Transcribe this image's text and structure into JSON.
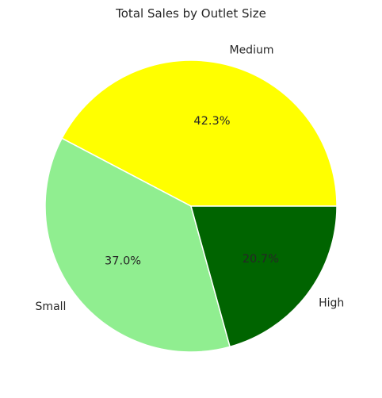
{
  "chart_data": {
    "type": "pie",
    "title": "Total Sales by Outlet Size",
    "categories": [
      "Medium",
      "Small",
      "High"
    ],
    "values": [
      42.3,
      37.0,
      20.7
    ],
    "value_labels": [
      "42.3%",
      "37.0%",
      "20.7%"
    ],
    "colors": [
      "#ffff00",
      "#90ee90",
      "#006400"
    ],
    "start_angle_deg": 0,
    "direction": "counterclockwise",
    "legend": "none"
  }
}
